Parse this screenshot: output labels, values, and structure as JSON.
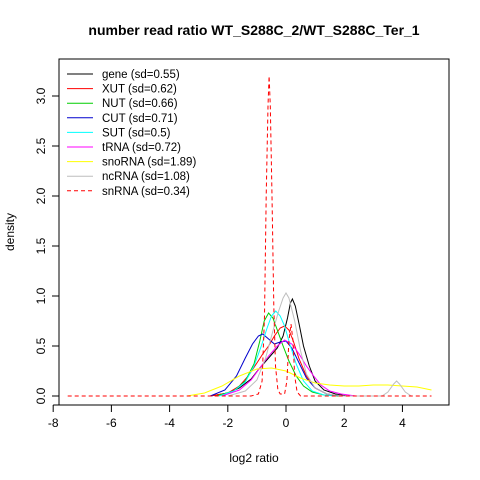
{
  "chart_data": {
    "type": "line",
    "title": "number read ratio WT_S288C_2/WT_S288C_Ter_1",
    "xlabel": "log2 ratio",
    "ylabel": "density",
    "xlim": [
      -7.8,
      5.6
    ],
    "ylim": [
      -0.09,
      3.37
    ],
    "x_ticks": [
      -8,
      -6,
      -4,
      -2,
      0,
      2,
      4
    ],
    "x_tick_labels": [
      "-8",
      "-6",
      "-4",
      "-2",
      "0",
      "2",
      "4"
    ],
    "y_ticks": [
      0.0,
      0.5,
      1.0,
      1.5,
      2.0,
      2.5,
      3.0
    ],
    "y_tick_labels": [
      "0.0",
      "0.5",
      "1.0",
      "1.5",
      "2.0",
      "2.5",
      "3.0"
    ],
    "legend_position": "top-left",
    "grid": false,
    "series": [
      {
        "name": "gene (sd=0.55)",
        "color": "#000000",
        "dash": false,
        "points": [
          [
            -2.6,
            0
          ],
          [
            -2.0,
            0.03
          ],
          [
            -1.6,
            0.08
          ],
          [
            -1.2,
            0.17
          ],
          [
            -0.9,
            0.28
          ],
          [
            -0.6,
            0.38
          ],
          [
            -0.3,
            0.48
          ],
          [
            -0.1,
            0.6
          ],
          [
            0.05,
            0.78
          ],
          [
            0.15,
            0.93
          ],
          [
            0.22,
            0.97
          ],
          [
            0.32,
            0.9
          ],
          [
            0.45,
            0.72
          ],
          [
            0.6,
            0.5
          ],
          [
            0.8,
            0.3
          ],
          [
            1.0,
            0.15
          ],
          [
            1.3,
            0.06
          ],
          [
            1.7,
            0.02
          ],
          [
            2.1,
            0
          ]
        ]
      },
      {
        "name": "XUT (sd=0.62)",
        "color": "#ff0000",
        "dash": false,
        "points": [
          [
            -2.6,
            0
          ],
          [
            -2.0,
            0.03
          ],
          [
            -1.6,
            0.1
          ],
          [
            -1.3,
            0.2
          ],
          [
            -1.0,
            0.33
          ],
          [
            -0.8,
            0.42
          ],
          [
            -0.6,
            0.5
          ],
          [
            -0.4,
            0.6
          ],
          [
            -0.2,
            0.68
          ],
          [
            -0.05,
            0.7
          ],
          [
            0.1,
            0.66
          ],
          [
            0.25,
            0.55
          ],
          [
            0.45,
            0.37
          ],
          [
            0.7,
            0.2
          ],
          [
            1.0,
            0.08
          ],
          [
            1.4,
            0.02
          ],
          [
            1.9,
            0
          ]
        ]
      },
      {
        "name": "NUT (sd=0.66)",
        "color": "#00cd00",
        "dash": false,
        "points": [
          [
            -2.4,
            0
          ],
          [
            -1.8,
            0.05
          ],
          [
            -1.4,
            0.15
          ],
          [
            -1.1,
            0.32
          ],
          [
            -0.9,
            0.55
          ],
          [
            -0.75,
            0.75
          ],
          [
            -0.6,
            0.83
          ],
          [
            -0.45,
            0.78
          ],
          [
            -0.3,
            0.66
          ],
          [
            -0.1,
            0.5
          ],
          [
            0.1,
            0.35
          ],
          [
            0.35,
            0.2
          ],
          [
            0.6,
            0.1
          ],
          [
            0.9,
            0.04
          ],
          [
            1.3,
            0.01
          ],
          [
            1.8,
            0
          ]
        ]
      },
      {
        "name": "CUT (sd=0.71)",
        "color": "#0000cd",
        "dash": false,
        "points": [
          [
            -2.6,
            0
          ],
          [
            -2.1,
            0.06
          ],
          [
            -1.7,
            0.2
          ],
          [
            -1.4,
            0.38
          ],
          [
            -1.15,
            0.52
          ],
          [
            -0.95,
            0.6
          ],
          [
            -0.8,
            0.62
          ],
          [
            -0.6,
            0.57
          ],
          [
            -0.4,
            0.52
          ],
          [
            -0.2,
            0.54
          ],
          [
            0.0,
            0.55
          ],
          [
            0.2,
            0.48
          ],
          [
            0.45,
            0.33
          ],
          [
            0.7,
            0.18
          ],
          [
            1.0,
            0.08
          ],
          [
            1.4,
            0.02
          ],
          [
            1.9,
            0
          ]
        ]
      },
      {
        "name": "SUT (sd=0.5)",
        "color": "#00ffff",
        "dash": false,
        "points": [
          [
            -2.3,
            0
          ],
          [
            -1.8,
            0.05
          ],
          [
            -1.4,
            0.14
          ],
          [
            -1.1,
            0.3
          ],
          [
            -0.85,
            0.5
          ],
          [
            -0.65,
            0.68
          ],
          [
            -0.5,
            0.8
          ],
          [
            -0.35,
            0.85
          ],
          [
            -0.2,
            0.8
          ],
          [
            -0.05,
            0.7
          ],
          [
            0.15,
            0.5
          ],
          [
            0.35,
            0.32
          ],
          [
            0.6,
            0.15
          ],
          [
            0.9,
            0.05
          ],
          [
            1.3,
            0.01
          ],
          [
            1.7,
            0
          ]
        ]
      },
      {
        "name": "tRNA (sd=0.72)",
        "color": "#ff00ff",
        "dash": false,
        "points": [
          [
            -2.2,
            0
          ],
          [
            -1.6,
            0.06
          ],
          [
            -1.2,
            0.16
          ],
          [
            -0.9,
            0.28
          ],
          [
            -0.6,
            0.4
          ],
          [
            -0.3,
            0.5
          ],
          [
            -0.05,
            0.56
          ],
          [
            0.2,
            0.52
          ],
          [
            0.45,
            0.42
          ],
          [
            0.7,
            0.3
          ],
          [
            0.95,
            0.2
          ],
          [
            1.2,
            0.11
          ],
          [
            1.5,
            0.05
          ],
          [
            1.9,
            0.02
          ],
          [
            2.4,
            0
          ]
        ]
      },
      {
        "name": "snoRNA (sd=1.89)",
        "color": "#ffff00",
        "dash": false,
        "points": [
          [
            -3.4,
            0
          ],
          [
            -2.8,
            0.03
          ],
          [
            -2.2,
            0.1
          ],
          [
            -1.6,
            0.2
          ],
          [
            -1.0,
            0.27
          ],
          [
            -0.5,
            0.28
          ],
          [
            0.0,
            0.25
          ],
          [
            0.5,
            0.18
          ],
          [
            1.0,
            0.13
          ],
          [
            1.5,
            0.11
          ],
          [
            2.0,
            0.1
          ],
          [
            2.5,
            0.1
          ],
          [
            3.0,
            0.11
          ],
          [
            3.5,
            0.11
          ],
          [
            4.0,
            0.1
          ],
          [
            4.5,
            0.09
          ],
          [
            5.0,
            0.06
          ]
        ]
      },
      {
        "name": "ncRNA (sd=1.08)",
        "color": "#bebebe",
        "dash": false,
        "points": [
          [
            -2.0,
            0
          ],
          [
            -1.4,
            0.05
          ],
          [
            -1.0,
            0.16
          ],
          [
            -0.7,
            0.38
          ],
          [
            -0.45,
            0.65
          ],
          [
            -0.25,
            0.85
          ],
          [
            -0.1,
            0.98
          ],
          [
            0.0,
            1.03
          ],
          [
            0.1,
            0.98
          ],
          [
            0.3,
            0.75
          ],
          [
            0.5,
            0.45
          ],
          [
            0.7,
            0.22
          ],
          [
            1.0,
            0.08
          ],
          [
            1.4,
            0.02
          ],
          [
            2.0,
            0
          ],
          [
            3.3,
            0
          ],
          [
            3.5,
            0.04
          ],
          [
            3.7,
            0.12
          ],
          [
            3.8,
            0.15
          ],
          [
            3.9,
            0.12
          ],
          [
            4.1,
            0.04
          ],
          [
            4.3,
            0
          ]
        ]
      },
      {
        "name": "snRNA (sd=0.34)",
        "color": "#ff0000",
        "dash": true,
        "points": [
          [
            -7.5,
            0
          ],
          [
            -4.0,
            0
          ],
          [
            -1.2,
            0
          ],
          [
            -0.95,
            0.02
          ],
          [
            -0.82,
            0.15
          ],
          [
            -0.74,
            0.8
          ],
          [
            -0.68,
            2.0
          ],
          [
            -0.62,
            2.9
          ],
          [
            -0.58,
            3.2
          ],
          [
            -0.54,
            2.9
          ],
          [
            -0.48,
            2.0
          ],
          [
            -0.42,
            0.9
          ],
          [
            -0.36,
            0.3
          ],
          [
            -0.28,
            0.06
          ],
          [
            -0.2,
            0.02
          ],
          [
            -0.05,
            0.02
          ],
          [
            0.03,
            0.15
          ],
          [
            0.1,
            0.55
          ],
          [
            0.17,
            0.72
          ],
          [
            0.24,
            0.55
          ],
          [
            0.3,
            0.2
          ],
          [
            0.38,
            0.04
          ],
          [
            0.5,
            0
          ],
          [
            5.0,
            0
          ]
        ]
      }
    ]
  }
}
